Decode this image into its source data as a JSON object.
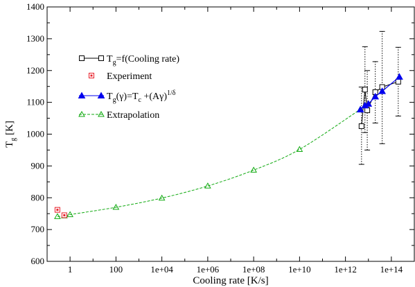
{
  "chart_data": {
    "type": "scatter",
    "x_scale": "log",
    "xlim_log10": [
      -1.0,
      15.0
    ],
    "ylim": [
      600,
      1400
    ],
    "xlabel": "Cooling rate [K/s]",
    "ylabel": {
      "main": "T",
      "sub": "g",
      "rest": " [K]"
    },
    "x_ticks": [
      {
        "log10": 0,
        "label": "1"
      },
      {
        "log10": 2,
        "label": "100"
      },
      {
        "log10": 4,
        "label": "1e+04"
      },
      {
        "log10": 6,
        "label": "1e+06"
      },
      {
        "log10": 8,
        "label": "1e+08"
      },
      {
        "log10": 10,
        "label": "1e+10"
      },
      {
        "log10": 12,
        "label": "1e+12"
      },
      {
        "log10": 14,
        "label": "1e+14"
      }
    ],
    "y_ticks": [
      600,
      700,
      800,
      900,
      1000,
      1100,
      1200,
      1300,
      1400
    ],
    "grid": false,
    "legend_position": "top-left",
    "series": [
      {
        "key": "cooling_rate",
        "color": "#000000",
        "marker": "open-square",
        "line": "solid",
        "legend": {
          "main": "T",
          "sub": "g",
          "rest": "=f(Cooling rate)"
        },
        "points": [
          {
            "log10x": 12.7,
            "y": 1025,
            "err_lo": 905,
            "err_hi": 1148
          },
          {
            "log10x": 12.85,
            "y": 1140,
            "err_lo": 1005,
            "err_hi": 1275
          },
          {
            "log10x": 12.95,
            "y": 1075,
            "err_lo": 950,
            "err_hi": 1200
          },
          {
            "log10x": 13.3,
            "y": 1132,
            "err_lo": 1035,
            "err_hi": 1228
          },
          {
            "log10x": 13.6,
            "y": 1148,
            "err_lo": 970,
            "err_hi": 1323
          },
          {
            "log10x": 14.3,
            "y": 1165,
            "err_lo": 1057,
            "err_hi": 1273
          }
        ]
      },
      {
        "key": "experiment",
        "color": "#e8202a",
        "marker": "red-square",
        "line": "none",
        "legend": {
          "main": "Experiment",
          "sub": "",
          "rest": ""
        },
        "points": [
          {
            "log10x": -0.55,
            "y": 762
          },
          {
            "log10x": -0.25,
            "y": 745
          }
        ]
      },
      {
        "key": "fit",
        "color": "#0000ee",
        "marker": "filled-triangle",
        "line": "solid",
        "legend": {
          "main": "T",
          "sub": "g",
          "rest": "(γ)=T",
          "sub2": "c",
          "rest2": " +(Aγ)",
          "sup": "1/δ"
        },
        "points": [
          {
            "log10x": 12.65,
            "y": 1077
          },
          {
            "log10x": 12.85,
            "y": 1090
          },
          {
            "log10x": 13.0,
            "y": 1095
          },
          {
            "log10x": 13.3,
            "y": 1118
          },
          {
            "log10x": 13.6,
            "y": 1135
          },
          {
            "log10x": 14.35,
            "y": 1180
          }
        ]
      },
      {
        "key": "extrapolation",
        "color": "#11aa11",
        "marker": "open-triangle",
        "line": "dashed",
        "legend": {
          "main": "Extrapolation",
          "sub": "",
          "rest": ""
        },
        "points": [
          {
            "log10x": -0.55,
            "y": 741
          },
          {
            "log10x": -0.25,
            "y": 743
          },
          {
            "log10x": 0,
            "y": 747
          },
          {
            "log10x": 2,
            "y": 770
          },
          {
            "log10x": 4,
            "y": 799
          },
          {
            "log10x": 6,
            "y": 837
          },
          {
            "log10x": 8,
            "y": 887
          },
          {
            "log10x": 10,
            "y": 952
          },
          {
            "log10x": 12.65,
            "y": 1078
          }
        ]
      }
    ]
  }
}
